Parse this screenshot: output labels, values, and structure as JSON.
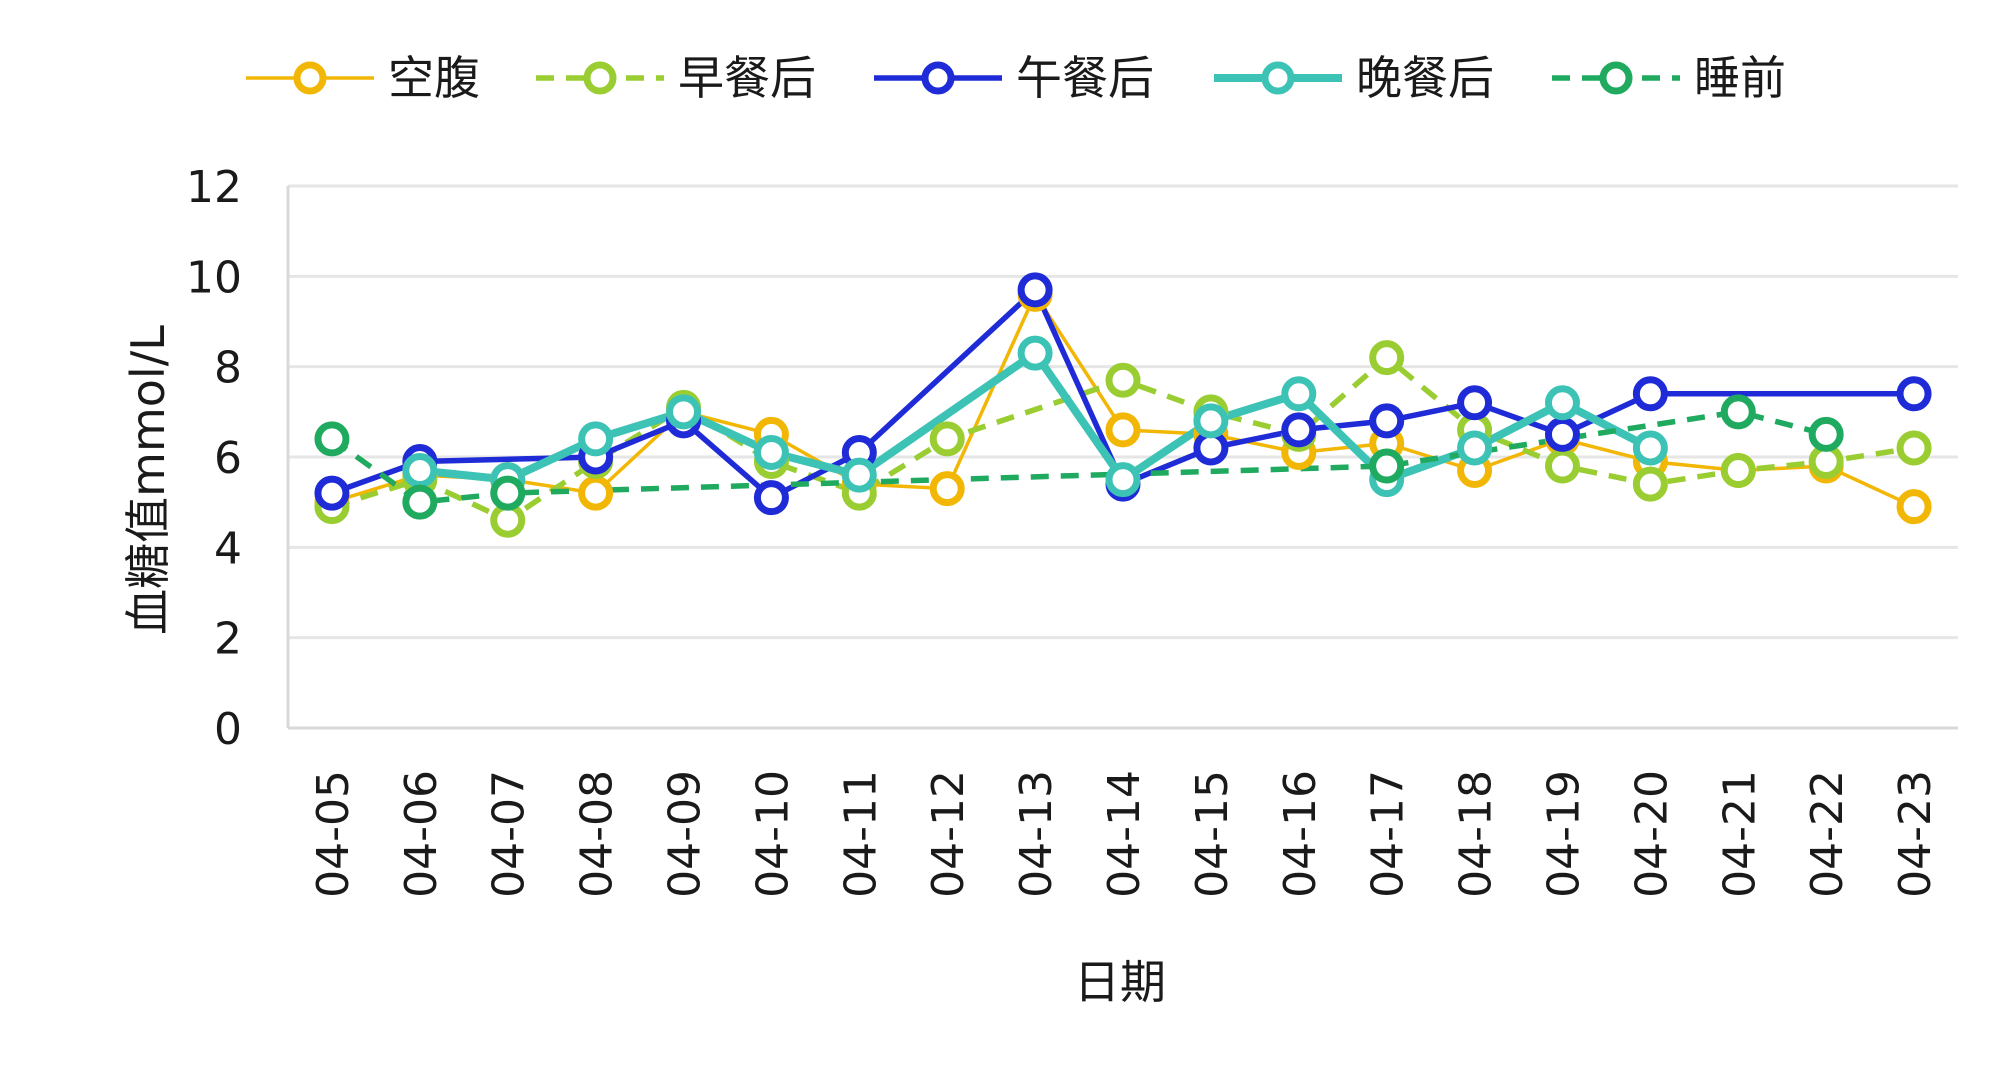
{
  "chart_data": {
    "type": "line",
    "title": "",
    "xlabel": "日期",
    "ylabel": "血糖值mmol/L",
    "ylim": [
      0,
      12
    ],
    "yticks": [
      0,
      2,
      4,
      6,
      8,
      10,
      12
    ],
    "grid": true,
    "legend_position": "top",
    "categories": [
      "04-05",
      "04-06",
      "04-07",
      "04-08",
      "04-09",
      "04-10",
      "04-11",
      "04-12",
      "04-13",
      "04-14",
      "04-15",
      "04-16",
      "04-17",
      "04-18",
      "04-19",
      "04-20",
      "04-21",
      "04-22",
      "04-23"
    ],
    "series": [
      {
        "name": "空腹",
        "color": "#F2B705",
        "dash": "solid",
        "weight": "thin",
        "values": [
          5.0,
          5.6,
          5.5,
          5.2,
          7.0,
          6.5,
          5.4,
          5.3,
          9.6,
          6.6,
          6.5,
          6.1,
          6.3,
          5.7,
          6.4,
          5.9,
          5.7,
          5.8,
          4.9
        ]
      },
      {
        "name": "早餐后",
        "color": "#9ACD32",
        "dash": "dashed",
        "weight": "medium",
        "values": [
          4.9,
          5.5,
          4.6,
          5.9,
          7.1,
          5.9,
          5.2,
          6.4,
          null,
          7.7,
          7.0,
          6.5,
          8.2,
          6.6,
          5.8,
          5.4,
          5.7,
          5.9,
          6.2
        ]
      },
      {
        "name": "午餐后",
        "color": "#1F2BD6",
        "dash": "solid",
        "weight": "medium",
        "values": [
          5.2,
          5.9,
          null,
          6.0,
          6.8,
          5.1,
          6.1,
          null,
          9.7,
          5.4,
          6.2,
          6.6,
          6.8,
          7.2,
          6.5,
          7.4,
          null,
          null,
          7.4
        ]
      },
      {
        "name": "晚餐后",
        "color": "#3CC3B5",
        "dash": "solid",
        "weight": "thick",
        "values": [
          null,
          5.7,
          5.5,
          6.4,
          7.0,
          6.1,
          5.6,
          null,
          8.3,
          5.5,
          6.8,
          7.4,
          5.5,
          6.2,
          7.2,
          6.2,
          null,
          null,
          null
        ]
      },
      {
        "name": "睡前",
        "color": "#1FAA60",
        "dash": "dashed",
        "weight": "medium",
        "values": [
          6.4,
          5.0,
          5.2,
          null,
          null,
          null,
          null,
          null,
          null,
          null,
          null,
          null,
          5.8,
          null,
          null,
          null,
          7.0,
          6.5,
          null
        ]
      }
    ],
    "axis_color": "#d9d9d9",
    "grid_color": "#e6e6e6"
  }
}
